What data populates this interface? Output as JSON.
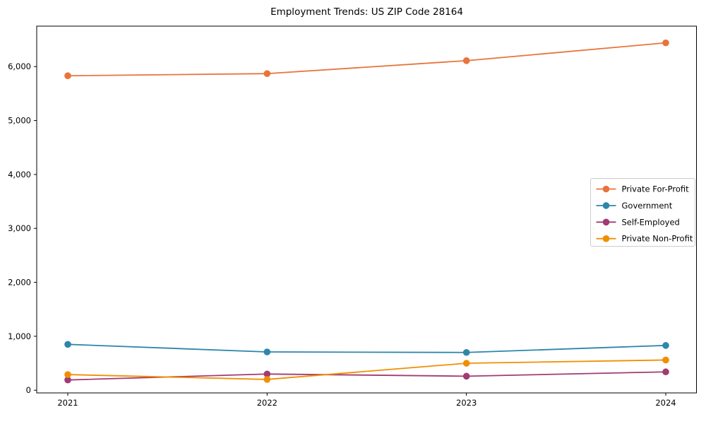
{
  "figure": {
    "background": "#ffffff",
    "spine_color": "#000000",
    "tick_color": "#000000"
  },
  "chart_data": {
    "type": "line",
    "title": "Employment Trends: US ZIP Code 28164",
    "xlabel": "",
    "ylabel": "",
    "x": [
      "2021",
      "2022",
      "2023",
      "2024"
    ],
    "series": [
      {
        "name": "Private For-Profit",
        "color": "#E8743B",
        "values": [
          5830,
          5870,
          6110,
          6440
        ]
      },
      {
        "name": "Government",
        "color": "#2E86AB",
        "values": [
          850,
          710,
          700,
          830
        ]
      },
      {
        "name": "Self-Employed",
        "color": "#A23B72",
        "values": [
          190,
          300,
          260,
          340
        ]
      },
      {
        "name": "Private Non-Profit",
        "color": "#F18F01",
        "values": [
          290,
          200,
          500,
          560
        ]
      }
    ],
    "ylim": [
      -50,
      6750
    ],
    "yticks": [
      0,
      1000,
      2000,
      3000,
      4000,
      5000,
      6000
    ],
    "ytick_labels": [
      "0",
      "1,000",
      "2,000",
      "3,000",
      "4,000",
      "5,000",
      "6,000"
    ],
    "grid": false,
    "legend": {
      "position": "center-right",
      "background": "#ffffff",
      "border_color": "#cccccc",
      "entries": [
        "Private For-Profit",
        "Government",
        "Self-Employed",
        "Private Non-Profit"
      ]
    }
  }
}
